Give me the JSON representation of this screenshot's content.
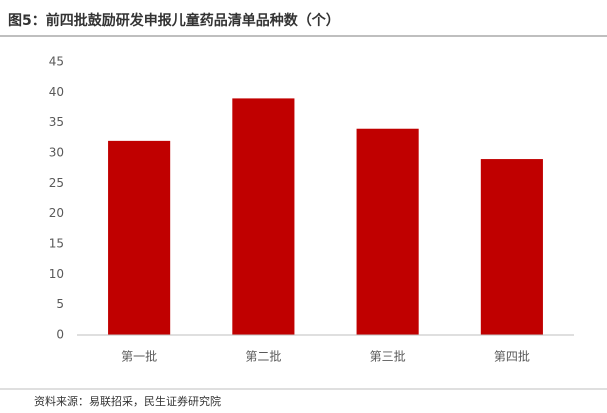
{
  "chart_data": {
    "type": "bar",
    "title": "图5：前四批鼓励研发申报儿童药品清单品种数（个）",
    "categories": [
      "第一批",
      "第二批",
      "第三批",
      "第四批"
    ],
    "values": [
      32,
      39,
      34,
      29
    ],
    "color": "#c00000",
    "ylim": [
      0,
      45
    ],
    "yticks": [
      0,
      5,
      10,
      15,
      20,
      25,
      30,
      35,
      40,
      45
    ],
    "grid": false,
    "source": "资料来源：易联招采，民生证券研究院"
  }
}
